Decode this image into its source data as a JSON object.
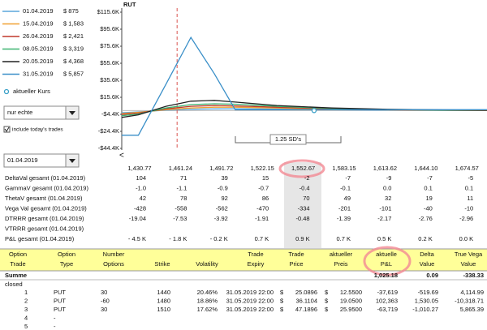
{
  "controls": {
    "filter": "nur echte",
    "checkbox": "include today's trades",
    "date": "01.04.2019",
    "scroll": "<"
  },
  "chart_data": {
    "type": "line",
    "title": "RUT",
    "x": [
      1428,
      1440,
      1460,
      1478,
      1495,
      1510,
      1540,
      1580,
      1620,
      1660,
      1692
    ],
    "xlim": [
      1428,
      1692
    ],
    "ylim": [
      -44400,
      115600
    ],
    "yticks": [
      {
        "value": 115600,
        "label": "$115.6K"
      },
      {
        "value": 95600,
        "label": "$95.6K"
      },
      {
        "value": 75600,
        "label": "$75.6K"
      },
      {
        "value": 55600,
        "label": "$55.6K"
      },
      {
        "value": 35600,
        "label": "$35.6K"
      },
      {
        "value": 15600,
        "label": "$15.6K"
      },
      {
        "value": -4400,
        "label": "-$4.4K"
      },
      {
        "value": -24400,
        "label": "-$24.4K"
      },
      {
        "value": -44400,
        "label": "-$44.4K"
      }
    ],
    "series": [
      {
        "name": "01.04.2019",
        "legend_value": "$ 875",
        "color": "#5aa5dc",
        "values": [
          -2500,
          -1500,
          500,
          1500,
          2000,
          2200,
          1800,
          1000,
          500,
          300,
          100
        ]
      },
      {
        "name": "15.04.2019",
        "legend_value": "$ 1,583",
        "color": "#f0a030",
        "values": [
          -3500,
          -2000,
          1000,
          3000,
          4000,
          4000,
          3000,
          1500,
          800,
          400,
          200
        ]
      },
      {
        "name": "26.04.2019",
        "legend_value": "$ 2,421",
        "color": "#c0392b",
        "values": [
          -4500,
          -3000,
          2000,
          5000,
          6000,
          5500,
          4000,
          2000,
          1000,
          500,
          300
        ]
      },
      {
        "name": "08.05.2019",
        "legend_value": "$ 3,319",
        "color": "#3cb371",
        "values": [
          -6000,
          -4000,
          3000,
          7000,
          8000,
          7500,
          5000,
          2500,
          1200,
          600,
          400
        ]
      },
      {
        "name": "20.05.2019",
        "legend_value": "$ 4,368",
        "color": "#222222",
        "values": [
          -8000,
          -5000,
          5000,
          11000,
          12000,
          10000,
          6000,
          3000,
          1500,
          800,
          500
        ]
      },
      {
        "name": "31.05.2019",
        "legend_value": "$ 5,857",
        "color": "#3a8fc8",
        "values": [
          -29000,
          -29000,
          31000,
          86000,
          43000,
          1000,
          1000,
          1000,
          1000,
          1000,
          1000
        ]
      }
    ],
    "current_price": 1468,
    "marker": {
      "label": "aktueller Kurs",
      "x": 1567,
      "y": 0
    },
    "annotation": "1.25 SD's"
  },
  "greeks": {
    "prices": [
      "1,430.77",
      "1,461.24",
      "1,491.72",
      "1,522.15",
      "1,552.67",
      "1,583.15",
      "1,613.62",
      "1,644.10",
      "1,674.57"
    ],
    "rows": [
      {
        "label": "DeltaVal gesamt (01.04.2019)",
        "values": [
          "104",
          "71",
          "39",
          "15",
          "-2",
          "-7",
          "-9",
          "-7",
          "-5"
        ]
      },
      {
        "label": "GammaV gesamt (01.04.2019)",
        "values": [
          "-1.0",
          "-1.1",
          "-0.9",
          "-0.7",
          "-0.4",
          "-0.1",
          "0.0",
          "0.1",
          "0.1"
        ]
      },
      {
        "label": "ThetaV gesamt (01.04.2019)",
        "values": [
          "42",
          "78",
          "92",
          "86",
          "70",
          "49",
          "32",
          "19",
          "11"
        ]
      },
      {
        "label": "Vega Val gesamt (01.04.2019)",
        "values": [
          "-428",
          "-558",
          "-562",
          "-470",
          "-334",
          "-201",
          "-101",
          "-40",
          "-10"
        ]
      },
      {
        "label": "DTRRR gesamt (01.04.2019)",
        "values": [
          "-19.04",
          "-7.53",
          "-3.92",
          "-1.91",
          "-0.48",
          "-1.39",
          "-2.17",
          "-2.76",
          "-2.96"
        ]
      },
      {
        "label": "VTRRR gesamt (01.04.2019)",
        "values": []
      },
      {
        "label": "P&L gesamt (01.04.2019)",
        "values": [
          "- 4.5 K",
          "- 1.8 K",
          "- 0.2 K",
          "0.7 K",
          "0.9 K",
          "0.7 K",
          "0.5 K",
          "0.2 K",
          "0.0 K"
        ]
      }
    ]
  },
  "trades": {
    "headers": [
      [
        "Option",
        "Trade"
      ],
      [
        "Option",
        "Type"
      ],
      [
        "Number",
        "Options"
      ],
      [
        "Strike"
      ],
      [
        "Volatility"
      ],
      [
        "Trade",
        "Expiry"
      ],
      [
        "Trade",
        "Price"
      ],
      [
        "aktueller",
        "Preis"
      ],
      [
        "aktuelle",
        "P&L"
      ],
      [
        "Delta",
        "Value"
      ],
      [
        "True Vega",
        "Value"
      ]
    ],
    "summary": {
      "label": "Summe",
      "pnl": "1,025.18",
      "delta": "0.09",
      "vega": "-338.33"
    },
    "section": "closed",
    "rows": [
      [
        "1",
        "PUT",
        "30",
        "1440",
        "20.46%",
        "31.05.2019 22:00",
        "$",
        "25.0896",
        "$",
        "12.5500",
        "-37,619",
        "-519.69",
        "4,114.99"
      ],
      [
        "2",
        "PUT",
        "-60",
        "1480",
        "18.86%",
        "31.05.2019 22:00",
        "$",
        "36.1104",
        "$",
        "19.0500",
        "102,363",
        "1,530.05",
        "-10,318.71"
      ],
      [
        "3",
        "PUT",
        "30",
        "1510",
        "17.62%",
        "31.05.2019 22:00",
        "$",
        "47.1896",
        "$",
        "25.9500",
        "-63,719",
        "-1,010.27",
        "5,865.39"
      ],
      [
        "4",
        "-"
      ],
      [
        "5",
        "-"
      ]
    ]
  }
}
